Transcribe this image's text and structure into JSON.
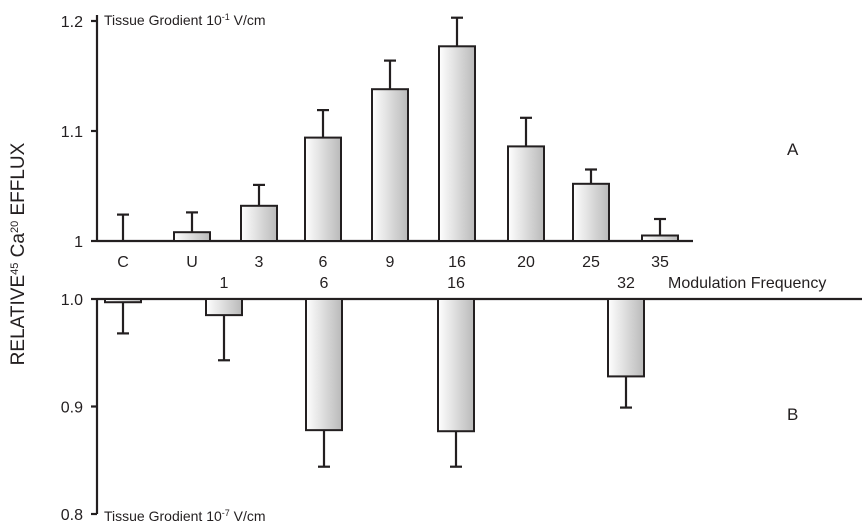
{
  "chart_data": [
    {
      "panel": "A",
      "type": "bar",
      "annotation": "Tissue Grodient 10",
      "annotation_exp": "-1",
      "annotation_unit": " V/cm",
      "categories": [
        "C",
        "U",
        "3",
        "6",
        "9",
        "16",
        "20",
        "25",
        "35"
      ],
      "values": [
        1.0,
        1.008,
        1.032,
        1.094,
        1.138,
        1.177,
        1.086,
        1.052,
        1.005
      ],
      "errors": [
        0.024,
        0.018,
        0.019,
        0.025,
        0.026,
        0.026,
        0.026,
        0.013,
        0.015
      ],
      "ylim": [
        1.0,
        1.2
      ],
      "yticks": [
        "1",
        "1.1",
        "1.2"
      ]
    },
    {
      "panel": "B",
      "type": "bar",
      "annotation": "Tissue Grodient 10",
      "annotation_exp": "-7",
      "annotation_unit": " V/cm",
      "xlabel": "Modulation Frequency",
      "categories": [
        "",
        "1",
        "6",
        "16",
        "32"
      ],
      "values": [
        0.997,
        0.985,
        0.878,
        0.877,
        0.928
      ],
      "errors": [
        0.029,
        0.042,
        0.034,
        0.033,
        0.029
      ],
      "ylim": [
        0.8,
        1.0
      ],
      "yticks": [
        "0.8",
        "0.9",
        "1.0"
      ]
    }
  ],
  "ylabel": {
    "pre": "RELATIVE",
    "sup1": "45",
    "mid": " Ca",
    "sup2": "20",
    "post": " EFFLUX"
  }
}
